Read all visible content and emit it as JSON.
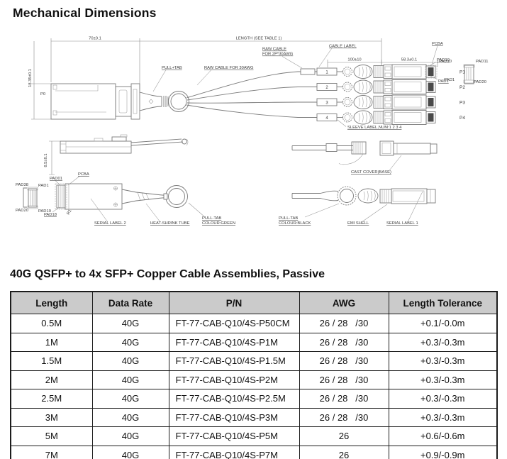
{
  "page": {
    "title": "Mechanical Dimensions",
    "section_title": "40G QSFP+ to 4x SFP+ Copper Cable Assemblies, Passive"
  },
  "diagram": {
    "colors": {
      "line": "#7b7b7b",
      "text": "#3c3c3c"
    },
    "labels": {
      "dim_70": "70±0.1",
      "dim_length": "LENGTH (SEE TABLE 1)",
      "dim_1835": "18.35±0.1",
      "dim_85": "8.5±0.1",
      "dim_100": "100±10",
      "dim_583": "58.3±0.1",
      "p0": "P0",
      "pull_tab_top": "PULL+TAB",
      "raw_cable_30awg": "RAW CABLE  FOR 30AWG",
      "raw_cable_2p_line1": "RAW CABLE",
      "raw_cable_2p_line2": "FOR 2P*30AWG",
      "cable_label": "CABLE LABEL",
      "pcba_top": "PCBA",
      "pad10_top": "PAD10",
      "pad1_top": "PAD1",
      "p1": "P1",
      "p2": "P2",
      "p3": "P3",
      "p4": "P4",
      "tag1": "1",
      "tag2": "2",
      "tag3": "3",
      "tag4": "4",
      "detail_pad10": "PAD10",
      "detail_pad11": "PAD11",
      "detail_pad1": "PAD1",
      "detail_pad20": "PAD20",
      "sleeve_label": "SLEEVE LABEL,NUM:1 2 3 4",
      "pad38": "PAD38",
      "pad1_left": "PAD1",
      "pad20_left": "PAD20",
      "pad19_left": "PAD19",
      "pad01": "PAD01",
      "pcba_bottom": "PCBA",
      "pad18": "PAD18",
      "r1": "R1",
      "serial_label2": "SERIAL LABEL 2",
      "heat_shrink": "HEAT-SHRINK TUBE",
      "pull_tab_green_line1": "PULL-TAB",
      "pull_tab_green_line2": "COLOUR:GREEN",
      "cast_cover": "CAST COVER(BASE)",
      "pull_tab_black_line1": "PULL-TAB",
      "pull_tab_black_line2": "COLOUR:BLACK",
      "emi_shell": "EMI SHELL",
      "serial_label1": "SERIAL LABEL 1"
    }
  },
  "table": {
    "colors": {
      "header_bg": "#cbcbcb",
      "border": "#1c1c1c"
    },
    "headers": [
      "Length",
      "Data Rate",
      "P/N",
      "AWG",
      "Length Tolerance"
    ],
    "rows": [
      [
        "0.5M",
        "40G",
        "FT-77-CAB-Q10/4S-P50CM",
        "26 / 28   /30",
        "+0.1/-0.0m"
      ],
      [
        "1M",
        "40G",
        "FT-77-CAB-Q10/4S-P1M",
        "26 / 28   /30",
        "+0.3/-0.3m"
      ],
      [
        "1.5M",
        "40G",
        "FT-77-CAB-Q10/4S-P1.5M",
        "26 / 28   /30",
        "+0.3/-0.3m"
      ],
      [
        "2M",
        "40G",
        "FT-77-CAB-Q10/4S-P2M",
        "26 / 28   /30",
        "+0.3/-0.3m"
      ],
      [
        "2.5M",
        "40G",
        "FT-77-CAB-Q10/4S-P2.5M",
        "26 / 28   /30",
        "+0.3/-0.3m"
      ],
      [
        "3M",
        "40G",
        "FT-77-CAB-Q10/4S-P3M",
        "26 / 28   /30",
        "+0.3/-0.3m"
      ],
      [
        "5M",
        "40G",
        "FT-77-CAB-Q10/4S-P5M",
        "26",
        "+0.6/-0.6m"
      ],
      [
        "7M",
        "40G",
        "FT-77-CAB-Q10/4S-P7M",
        "26",
        "+0.9/-0.9m"
      ]
    ]
  }
}
